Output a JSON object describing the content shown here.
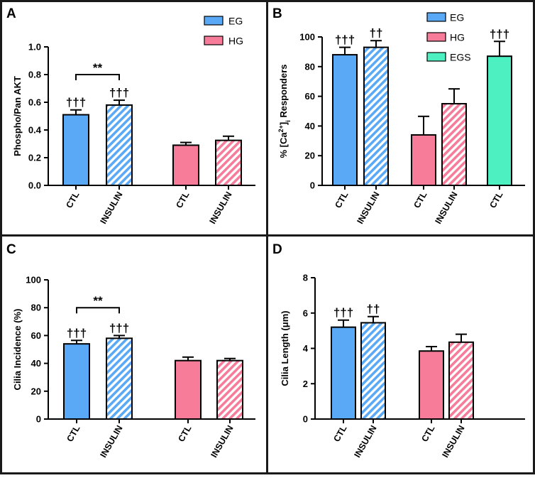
{
  "colors": {
    "EG": "#5aa9f7",
    "HG": "#f67c9a",
    "EGS": "#4df0c0",
    "border": "#1a1a1a",
    "bar_stroke": "#000000"
  },
  "chart_data": [
    {
      "type": "bar",
      "panel": "A",
      "ylabel": "Phospho/Pan AKT",
      "ylim": [
        0,
        1.0
      ],
      "ticks": [
        "0.0",
        "0.2",
        "0.4",
        "0.6",
        "0.8",
        "1.0"
      ],
      "tick_values": [
        0,
        0.2,
        0.4,
        0.6,
        0.8,
        1.0
      ],
      "legend": [
        {
          "key": "EG",
          "label": "EG"
        },
        {
          "key": "HG",
          "label": "HG"
        }
      ],
      "bars": [
        {
          "category": "CTL",
          "group": "EG",
          "hatched": false,
          "value": 0.51,
          "err": 0.035,
          "mark": "†††"
        },
        {
          "category": "INSULIN",
          "group": "EG",
          "hatched": true,
          "value": 0.58,
          "err": 0.035,
          "mark": "†††"
        },
        {
          "category": "CTL",
          "group": "HG",
          "hatched": false,
          "value": 0.29,
          "err": 0.02,
          "mark": ""
        },
        {
          "category": "INSULIN",
          "group": "HG",
          "hatched": true,
          "value": 0.325,
          "err": 0.03,
          "mark": ""
        }
      ],
      "bracket": {
        "from": 0,
        "to": 1,
        "y": 0.8,
        "label": "**"
      }
    },
    {
      "type": "bar",
      "panel": "B",
      "ylabel": "% [Ca2+]i Responders",
      "ylabel_parts": {
        "pre": "% [Ca",
        "sup": "2+",
        "post": "]",
        "sub": "i",
        "tail": " Responders"
      },
      "ylim": [
        0,
        100
      ],
      "ticks": [
        "0",
        "20",
        "40",
        "60",
        "80",
        "100"
      ],
      "tick_values": [
        0,
        20,
        40,
        60,
        80,
        100
      ],
      "legend": [
        {
          "key": "EG",
          "label": "EG"
        },
        {
          "key": "HG",
          "label": "HG"
        },
        {
          "key": "EGS",
          "label": "EGS"
        }
      ],
      "bars": [
        {
          "category": "CTL",
          "group": "EG",
          "hatched": false,
          "value": 88,
          "err": 5,
          "mark": "†††"
        },
        {
          "category": "INSULIN",
          "group": "EG",
          "hatched": true,
          "value": 93,
          "err": 4.5,
          "mark": "††"
        },
        {
          "category": "CTL",
          "group": "HG",
          "hatched": false,
          "value": 34,
          "err": 12.5,
          "mark": ""
        },
        {
          "category": "INSULIN",
          "group": "HG",
          "hatched": true,
          "value": 55,
          "err": 10,
          "mark": ""
        },
        {
          "category": "CTL",
          "group": "EGS",
          "hatched": false,
          "value": 87,
          "err": 10,
          "mark": "†††"
        }
      ]
    },
    {
      "type": "bar",
      "panel": "C",
      "ylabel": "Cilia Incidence (%)",
      "ylim": [
        0,
        100
      ],
      "ticks": [
        "0",
        "20",
        "40",
        "60",
        "80",
        "100"
      ],
      "tick_values": [
        0,
        20,
        40,
        60,
        80,
        100
      ],
      "bars": [
        {
          "category": "CTL",
          "group": "EG",
          "hatched": false,
          "value": 54,
          "err": 2.5,
          "mark": "†††"
        },
        {
          "category": "INSULIN",
          "group": "EG",
          "hatched": true,
          "value": 58,
          "err": 2,
          "mark": "†††"
        },
        {
          "category": "CTL",
          "group": "HG",
          "hatched": false,
          "value": 42,
          "err": 2.5,
          "mark": ""
        },
        {
          "category": "INSULIN",
          "group": "HG",
          "hatched": true,
          "value": 42,
          "err": 1.5,
          "mark": ""
        }
      ],
      "bracket": {
        "from": 0,
        "to": 1,
        "y": 80,
        "label": "**"
      }
    },
    {
      "type": "bar",
      "panel": "D",
      "ylabel": "Cilia Length (μm)",
      "ylim": [
        0,
        8
      ],
      "ticks": [
        "0",
        "2",
        "4",
        "6",
        "8"
      ],
      "tick_values": [
        0,
        2,
        4,
        6,
        8
      ],
      "bars": [
        {
          "category": "CTL",
          "group": "EG",
          "hatched": false,
          "value": 5.2,
          "err": 0.4,
          "mark": "†††"
        },
        {
          "category": "INSULIN",
          "group": "EG",
          "hatched": true,
          "value": 5.45,
          "err": 0.35,
          "mark": "††"
        },
        {
          "category": "CTL",
          "group": "HG",
          "hatched": false,
          "value": 3.85,
          "err": 0.25,
          "mark": ""
        },
        {
          "category": "INSULIN",
          "group": "HG",
          "hatched": true,
          "value": 4.35,
          "err": 0.45,
          "mark": ""
        }
      ]
    }
  ]
}
